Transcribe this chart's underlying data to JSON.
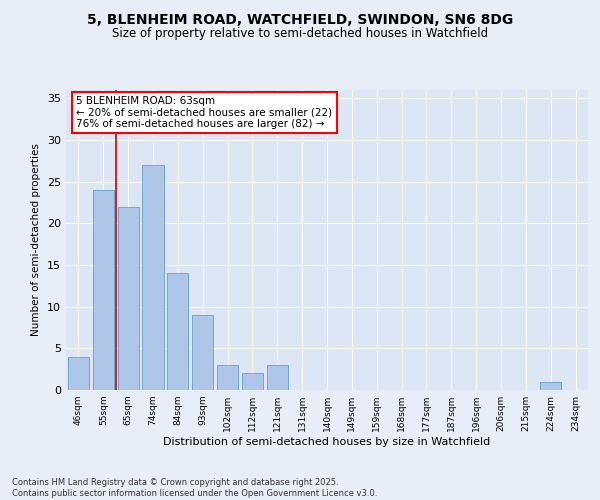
{
  "title1": "5, BLENHEIM ROAD, WATCHFIELD, SWINDON, SN6 8DG",
  "title2": "Size of property relative to semi-detached houses in Watchfield",
  "xlabel": "Distribution of semi-detached houses by size in Watchfield",
  "ylabel": "Number of semi-detached properties",
  "categories": [
    "46sqm",
    "55sqm",
    "65sqm",
    "74sqm",
    "84sqm",
    "93sqm",
    "102sqm",
    "112sqm",
    "121sqm",
    "131sqm",
    "140sqm",
    "149sqm",
    "159sqm",
    "168sqm",
    "177sqm",
    "187sqm",
    "196sqm",
    "206sqm",
    "215sqm",
    "224sqm",
    "234sqm"
  ],
  "values": [
    4,
    24,
    22,
    27,
    14,
    9,
    3,
    2,
    3,
    0,
    0,
    0,
    0,
    0,
    0,
    0,
    0,
    0,
    0,
    1,
    0
  ],
  "bar_color": "#aec6e8",
  "bar_edge_color": "#6fa8d0",
  "vline_x_index": 1.5,
  "vline_color": "#cc0000",
  "annotation_text": "5 BLENHEIM ROAD: 63sqm\n← 20% of semi-detached houses are smaller (22)\n76% of semi-detached houses are larger (82) →",
  "annotation_fontsize": 7.5,
  "ylim": [
    0,
    36
  ],
  "yticks": [
    0,
    5,
    10,
    15,
    20,
    25,
    30,
    35
  ],
  "footer": "Contains HM Land Registry data © Crown copyright and database right 2025.\nContains public sector information licensed under the Open Government Licence v3.0.",
  "bg_color": "#e8eef7",
  "plot_bg_color": "#dce6f5",
  "grid_color": "#ffffff",
  "title1_fontsize": 10,
  "title2_fontsize": 8.5
}
